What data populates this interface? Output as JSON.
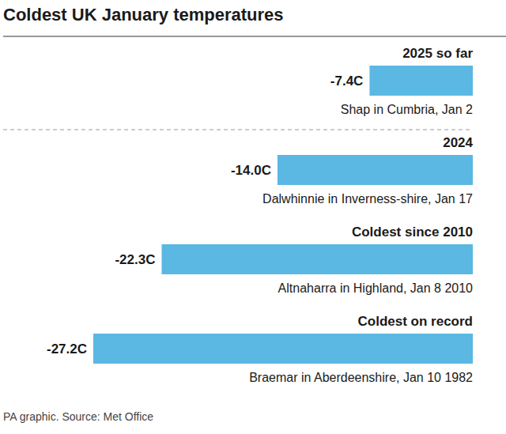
{
  "chart_data": {
    "type": "bar",
    "title": "Coldest UK January temperatures",
    "orientation": "horizontal",
    "categories": [
      "2025 so far",
      "2024",
      "Coldest since 2010",
      "Coldest on record"
    ],
    "values": [
      -7.4,
      -14.0,
      -22.3,
      -27.2
    ],
    "value_labels": [
      "-7.4C",
      "-14.0C",
      "-22.3C",
      "-27.2C"
    ],
    "annotations": [
      "Shap in Cumbria, Jan 2",
      "Dalwhinnie in Inverness-shire, Jan 17",
      "Altnaharra in Highland, Jan 8 2010",
      "Braemar in Aberdeenshire, Jan 10 1982"
    ],
    "source": "PA graphic. Source: Met Office",
    "color": "#5ab8e2",
    "xlim": [
      -27.2,
      0
    ],
    "data_labels": true,
    "tick_labels": false,
    "grid": false
  }
}
